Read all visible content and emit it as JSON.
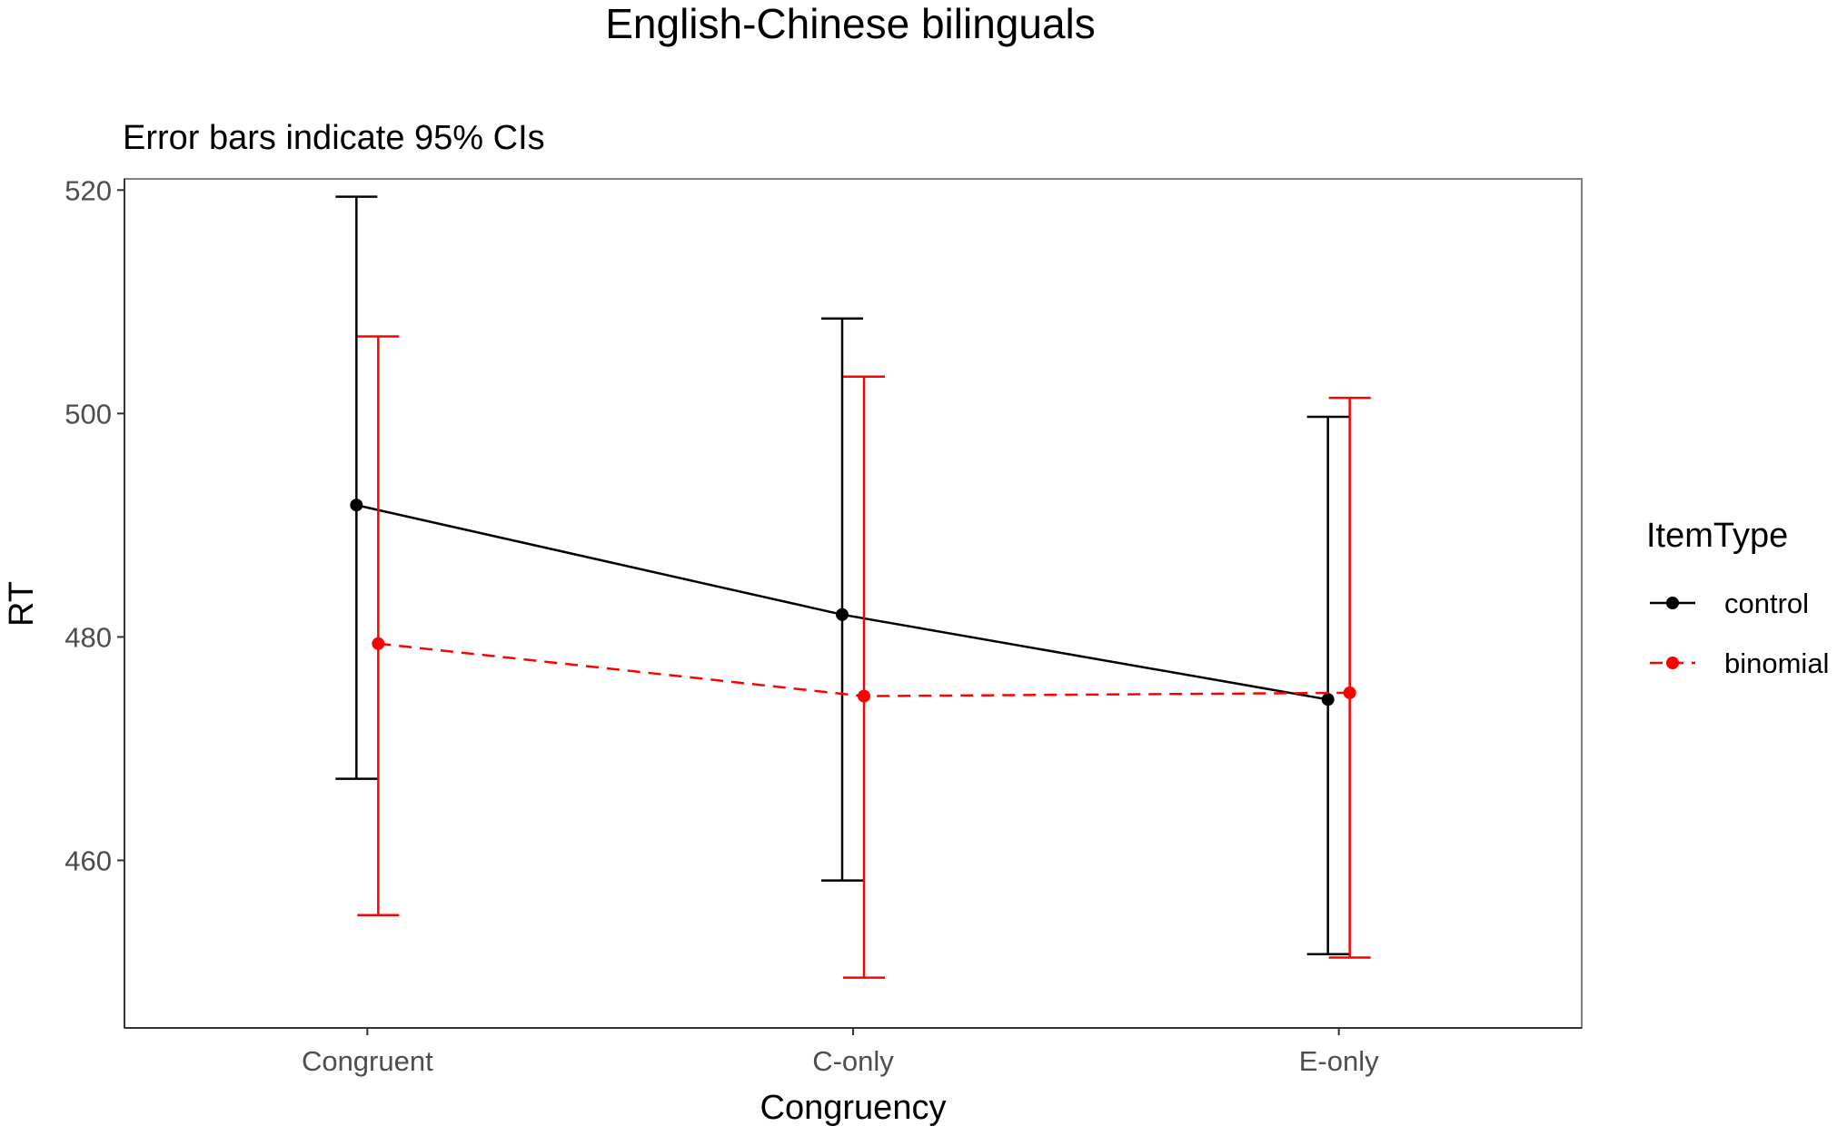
{
  "chart_data": {
    "type": "line",
    "title": "English-Chinese bilinguals",
    "subtitle": "Error bars indicate 95% CIs",
    "xlabel": "Congruency",
    "ylabel": "RT",
    "categories": [
      "Congruent",
      "C-only",
      "E-only"
    ],
    "ylim": [
      445,
      521
    ],
    "yticks": [
      460,
      480,
      500,
      520
    ],
    "grid": false,
    "legend": {
      "title": "ItemType",
      "position": "right"
    },
    "series": [
      {
        "name": "control",
        "color": "#000000",
        "line_style": "solid",
        "values": [
          491.8,
          482.0,
          474.4
        ],
        "ci_lower": [
          467.3,
          458.2,
          451.6
        ],
        "ci_upper": [
          519.4,
          508.5,
          499.7
        ]
      },
      {
        "name": "binomial",
        "color": "#ff0000",
        "line_style": "dashed",
        "values": [
          479.4,
          474.7,
          475.0
        ],
        "ci_lower": [
          455.1,
          449.5,
          451.3
        ],
        "ci_upper": [
          506.9,
          503.3,
          501.4
        ]
      }
    ]
  }
}
